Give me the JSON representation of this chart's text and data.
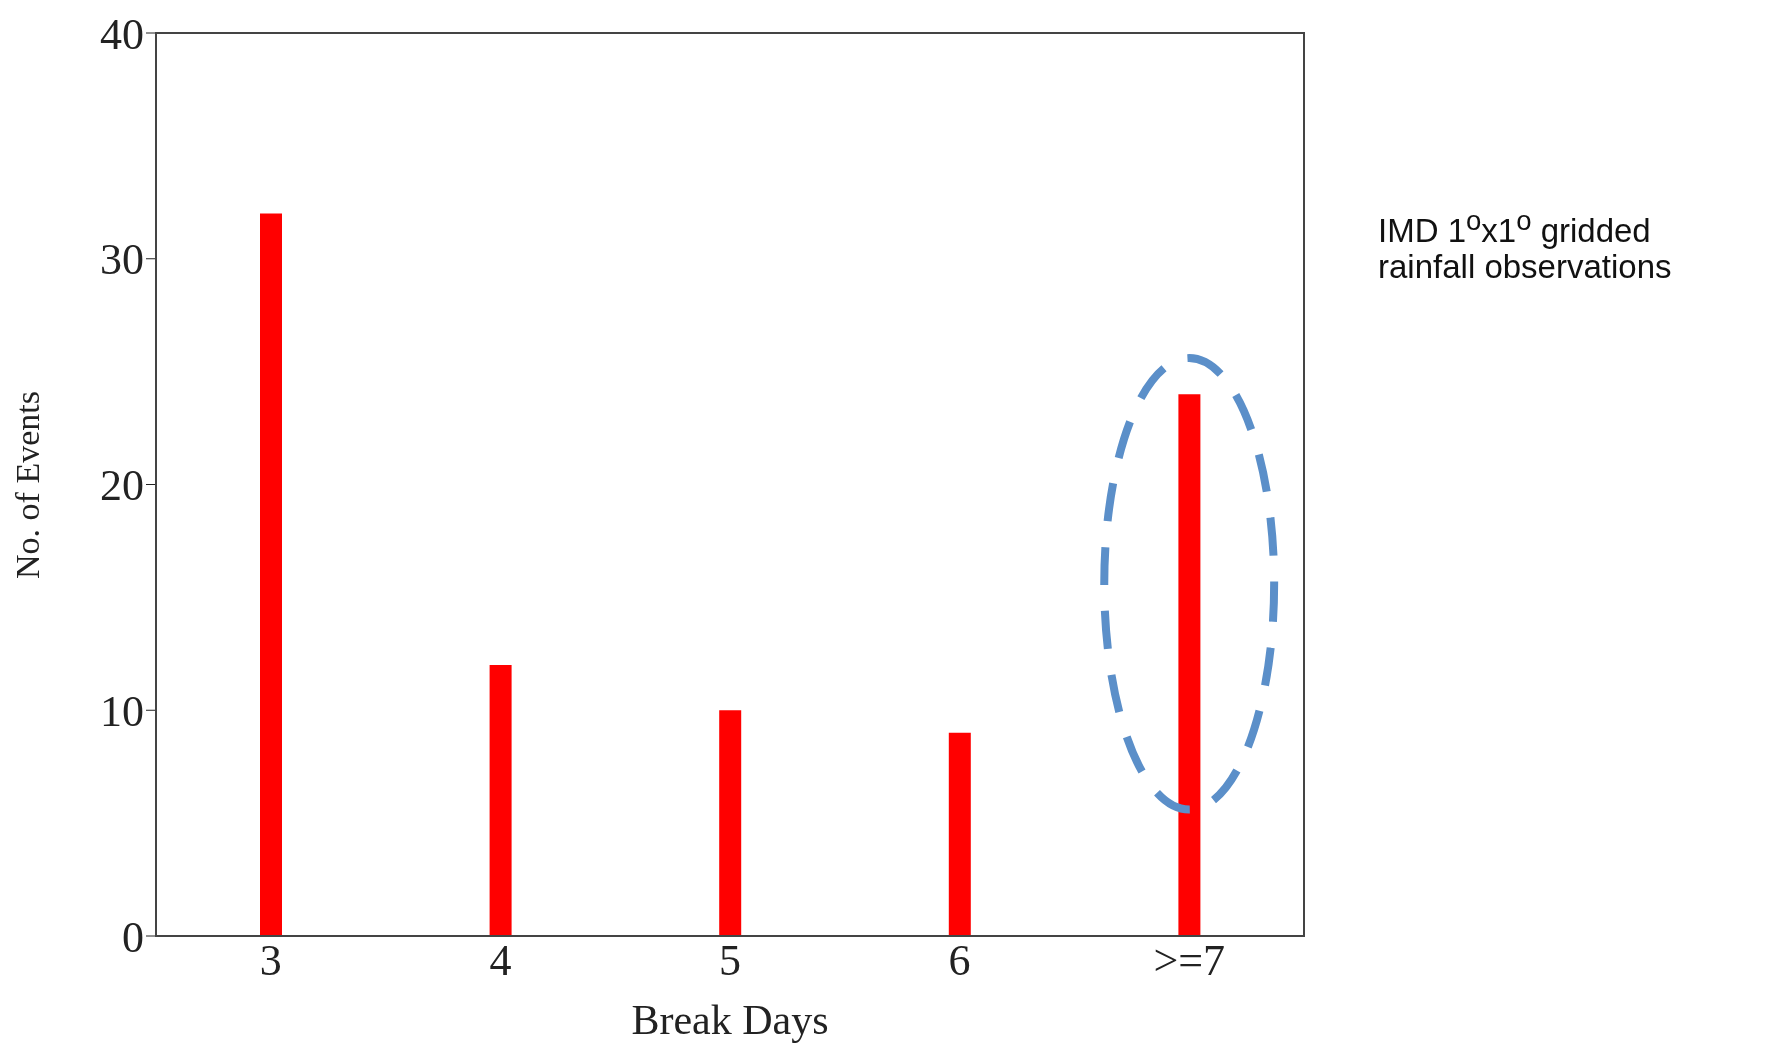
{
  "chart_data": {
    "type": "bar",
    "xlabel": "Break Days",
    "ylabel": "No. of Events",
    "categories": [
      "3",
      "4",
      "5",
      "6",
      ">=7"
    ],
    "values": [
      32,
      12,
      10,
      9,
      24
    ],
    "color": "#ff0000",
    "ylim": [
      0,
      40
    ],
    "yticks": [
      0,
      10,
      20,
      30,
      40
    ],
    "grid": false,
    "annotations": [
      "IMD 1$^{o}$x1$^{o}$ gridded rainfall observations"
    ]
  }
}
